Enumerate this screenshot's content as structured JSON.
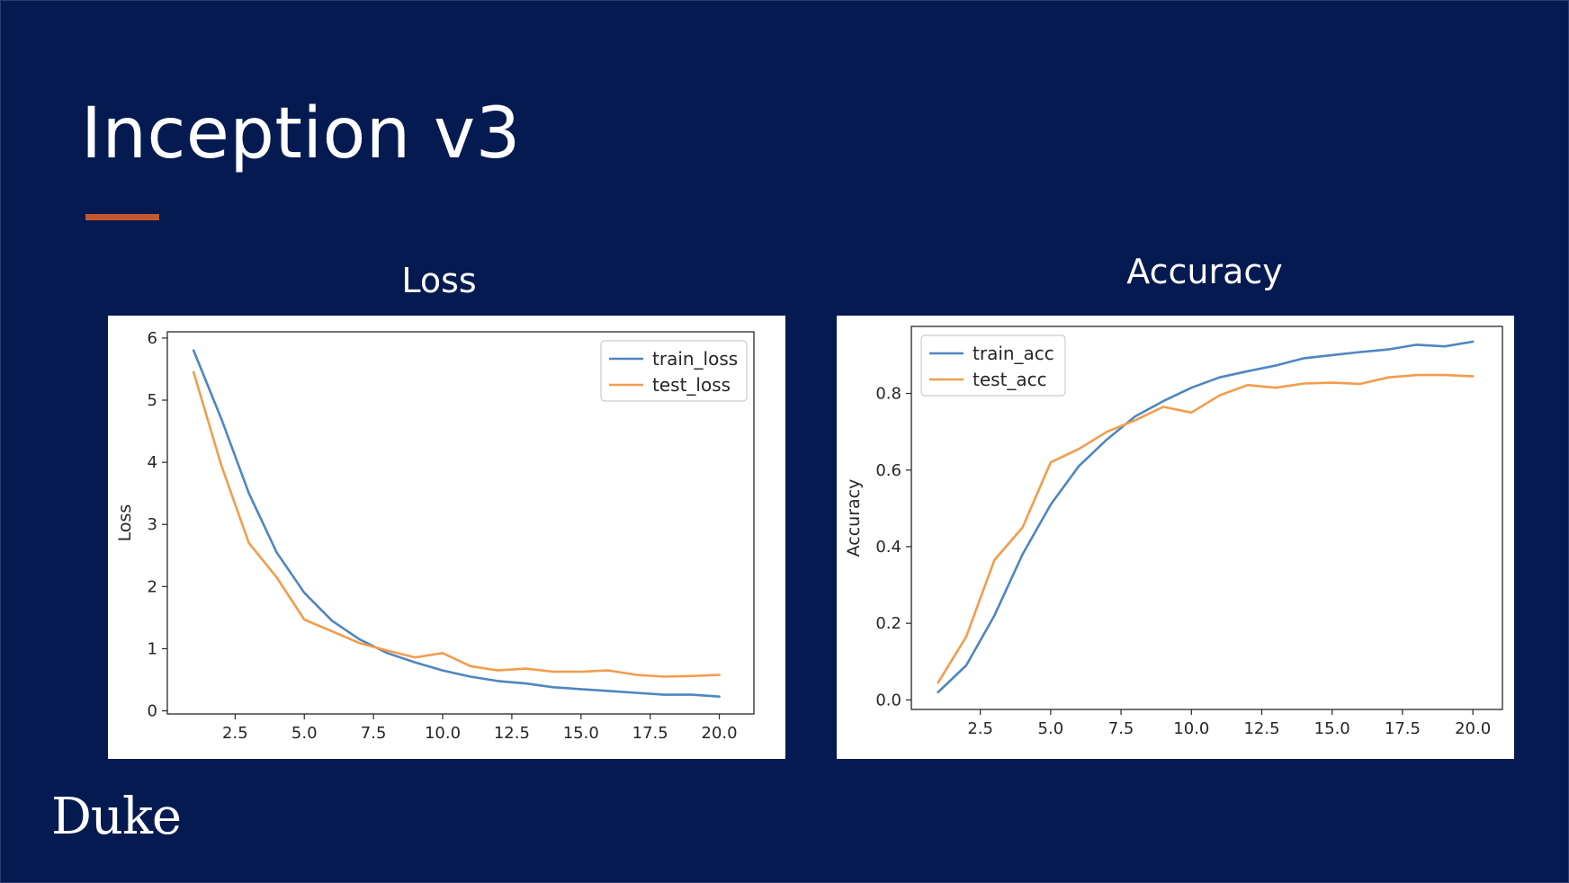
{
  "slide": {
    "title": "Inception v3",
    "logo": "Duke",
    "colors": {
      "background": "#061a52",
      "accent": "#c6592b",
      "train": "#4f86c0",
      "test": "#f39c4d"
    }
  },
  "chart_data": [
    {
      "type": "line",
      "title": "Loss",
      "xlabel": "",
      "ylabel": "Loss",
      "xlim": [
        0.05,
        21.25
      ],
      "ylim": [
        -0.05,
        6.1
      ],
      "xticks": [
        2.5,
        5.0,
        7.5,
        10.0,
        12.5,
        15.0,
        17.5,
        20.0
      ],
      "xtick_labels": [
        "2.5",
        "5.0",
        "7.5",
        "10.0",
        "12.5",
        "15.0",
        "17.5",
        "20.0"
      ],
      "yticks": [
        0,
        1,
        2,
        3,
        4,
        5,
        6
      ],
      "ytick_labels": [
        "0",
        "1",
        "2",
        "3",
        "4",
        "5",
        "6"
      ],
      "legend_position": "top-right",
      "x": [
        1,
        2,
        3,
        4,
        5,
        6,
        7,
        8,
        9,
        10,
        11,
        12,
        13,
        14,
        15,
        16,
        17,
        18,
        19,
        20
      ],
      "series": [
        {
          "name": "train_loss",
          "color": "#4f86c0",
          "values": [
            5.8,
            4.7,
            3.5,
            2.55,
            1.9,
            1.45,
            1.15,
            0.93,
            0.78,
            0.65,
            0.55,
            0.48,
            0.44,
            0.38,
            0.35,
            0.32,
            0.29,
            0.26,
            0.26,
            0.23
          ]
        },
        {
          "name": "test_loss",
          "color": "#f39c4d",
          "values": [
            5.45,
            3.95,
            2.7,
            2.15,
            1.47,
            1.28,
            1.09,
            0.97,
            0.86,
            0.93,
            0.72,
            0.65,
            0.68,
            0.63,
            0.63,
            0.65,
            0.58,
            0.55,
            0.56,
            0.58
          ]
        }
      ]
    },
    {
      "type": "line",
      "title": "Accuracy",
      "xlabel": "",
      "ylabel": "Accuracy",
      "xlim": [
        0.05,
        21.05
      ],
      "ylim": [
        -0.025,
        0.975
      ],
      "xticks": [
        2.5,
        5.0,
        7.5,
        10.0,
        12.5,
        15.0,
        17.5,
        20.0
      ],
      "xtick_labels": [
        "2.5",
        "5.0",
        "7.5",
        "10.0",
        "12.5",
        "15.0",
        "17.5",
        "20.0"
      ],
      "yticks": [
        0.0,
        0.2,
        0.4,
        0.6,
        0.8
      ],
      "ytick_labels": [
        "0.0",
        "0.2",
        "0.4",
        "0.6",
        "0.8"
      ],
      "legend_position": "top-left",
      "x": [
        1,
        2,
        3,
        4,
        5,
        6,
        7,
        8,
        9,
        10,
        11,
        12,
        13,
        14,
        15,
        16,
        17,
        18,
        19,
        20
      ],
      "series": [
        {
          "name": "train_acc",
          "color": "#4f86c0",
          "values": [
            0.02,
            0.09,
            0.22,
            0.38,
            0.51,
            0.61,
            0.68,
            0.74,
            0.78,
            0.815,
            0.842,
            0.858,
            0.873,
            0.892,
            0.9,
            0.908,
            0.915,
            0.927,
            0.923,
            0.935
          ]
        },
        {
          "name": "test_acc",
          "color": "#f39c4d",
          "values": [
            0.045,
            0.165,
            0.365,
            0.45,
            0.62,
            0.655,
            0.7,
            0.73,
            0.765,
            0.75,
            0.795,
            0.822,
            0.815,
            0.826,
            0.828,
            0.825,
            0.842,
            0.848,
            0.848,
            0.845
          ]
        }
      ]
    }
  ]
}
